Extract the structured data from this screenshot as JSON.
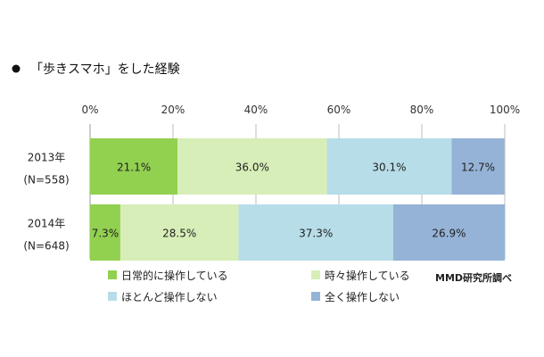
{
  "chart_data": {
    "type": "bar",
    "orientation": "horizontal",
    "stacked": true,
    "title": "「歩きスマホ」をした経験",
    "categories": [
      "2013年\n(N=558)",
      "2014年\n(N=648)"
    ],
    "category_lines": [
      [
        "2013年",
        "(N=558)"
      ],
      [
        "2014年",
        "(N=648)"
      ]
    ],
    "x_ticks": [
      "0%",
      "20%",
      "40%",
      "60%",
      "80%",
      "100%"
    ],
    "xlim": [
      0,
      100
    ],
    "grid": true,
    "legend_position": "bottom",
    "series": [
      {
        "name": "日常的に操作している",
        "color": "#92d050",
        "values": [
          21.1,
          7.3
        ],
        "labels": [
          "21.1%",
          "7.3%"
        ]
      },
      {
        "name": "時々操作している",
        "color": "#d7eeb8",
        "values": [
          36.0,
          28.5
        ],
        "labels": [
          "36.0%",
          "28.5%"
        ]
      },
      {
        "name": "ほとんど操作しない",
        "color": "#b7dde8",
        "values": [
          30.1,
          37.3
        ],
        "labels": [
          "30.1%",
          "37.3%"
        ]
      },
      {
        "name": "全く操作しない",
        "color": "#95b3d7",
        "values": [
          12.7,
          26.9
        ],
        "labels": [
          "12.7%",
          "26.9%"
        ]
      }
    ]
  },
  "source": "MMD研究所調べ"
}
